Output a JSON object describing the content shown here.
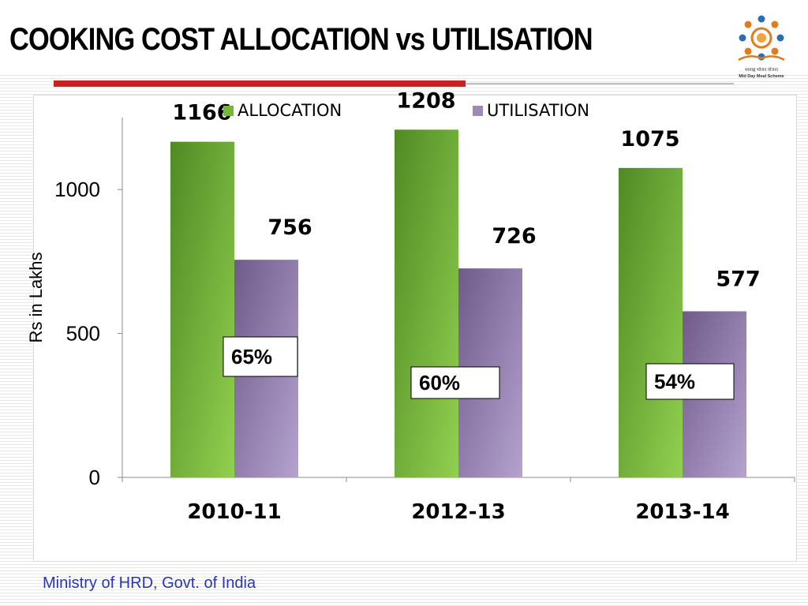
{
  "slide": {
    "title": "COOKING COST ALLOCATION vs UTILISATION",
    "footer": "Ministry of HRD, Govt. of India",
    "logo_text_hindi": "मध्याह्न भोजन योजना",
    "logo_text_english": "Mid Day Meal Scheme"
  },
  "colors": {
    "title": "#000000",
    "accent_rule": "#cc1f1f",
    "footer": "#2a35b5",
    "allocation": "#74b83a",
    "utilisation": "#9d8ab8"
  },
  "chart_data": {
    "type": "bar",
    "title": "",
    "xlabel": "",
    "ylabel": "Rs in Lakhs",
    "categories": [
      "2010-11",
      "2012-13",
      "2013-14"
    ],
    "series": [
      {
        "name": "ALLOCATION",
        "values": [
          1166,
          1208,
          1075
        ]
      },
      {
        "name": "UTILISATION",
        "values": [
          756,
          726,
          577
        ]
      }
    ],
    "ylim": [
      0,
      1250
    ],
    "yticks": [
      0,
      500,
      1000
    ],
    "legend": "top",
    "grid": false,
    "annotations": [
      "65%",
      "60%",
      "54%"
    ]
  }
}
